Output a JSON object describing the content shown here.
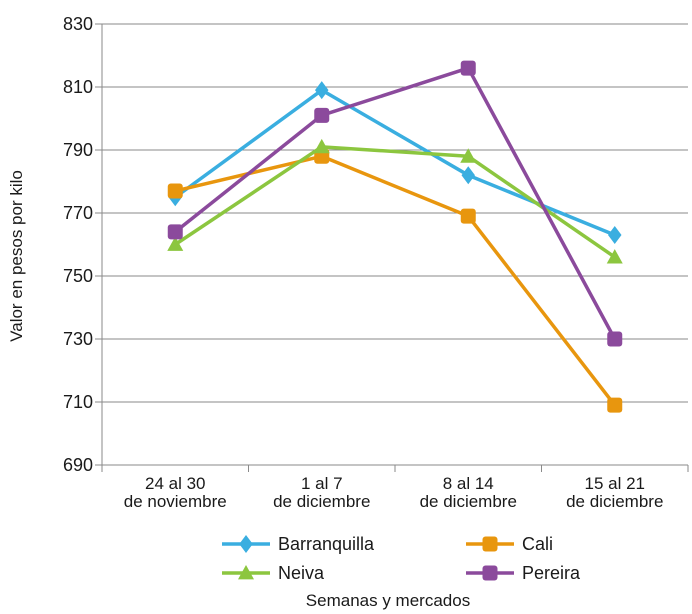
{
  "chart_data": {
    "type": "line",
    "xlabel": "Semanas y mercados",
    "ylabel": "Valor en pesos por kilo",
    "ylim": [
      690,
      830
    ],
    "yticks": [
      690,
      710,
      730,
      750,
      770,
      790,
      810,
      830
    ],
    "grid": true,
    "legend_position": "bottom",
    "categories": [
      [
        "24 al 30",
        "de noviembre"
      ],
      [
        "1 al 7",
        "de diciembre"
      ],
      [
        "8 al 14",
        "de diciembre"
      ],
      [
        "15 al 21",
        "de diciembre"
      ]
    ],
    "series": [
      {
        "name": "Barranquilla",
        "values": [
          775,
          809,
          782,
          763
        ],
        "color": "#3aaee0",
        "marker": "diamond"
      },
      {
        "name": "Cali",
        "values": [
          777,
          788,
          769,
          709
        ],
        "color": "#e8960e",
        "marker": "square"
      },
      {
        "name": "Neiva",
        "values": [
          760,
          791,
          788,
          756
        ],
        "color": "#8cc63f",
        "marker": "triangle"
      },
      {
        "name": "Pereira",
        "values": [
          764,
          801,
          816,
          730
        ],
        "color": "#8b4a9c",
        "marker": "square"
      }
    ]
  }
}
